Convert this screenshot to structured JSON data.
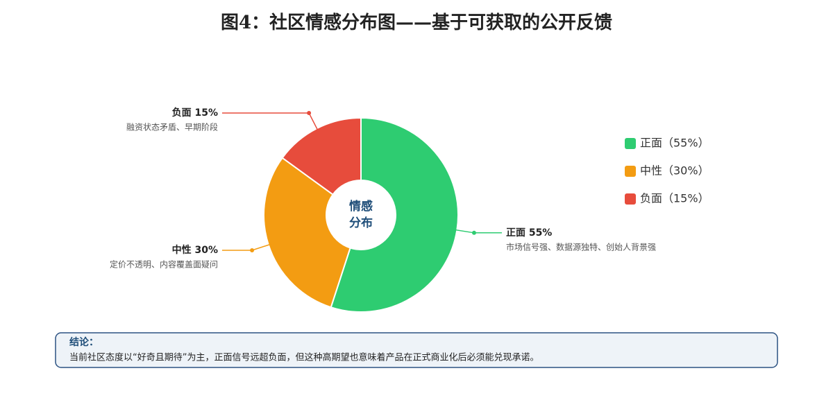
{
  "chart_data": {
    "type": "donut",
    "title": "图4：社区情感分布图——基于可获取的公开反馈",
    "center_label": [
      "情感",
      "分布"
    ],
    "categories": [
      "正面",
      "中性",
      "负面"
    ],
    "values": [
      55,
      30,
      15
    ],
    "value_labels": [
      "正面 55%",
      "中性 30%",
      "负面 15%"
    ],
    "descriptions": [
      "市场信号强、数据源独特、创始人背景强",
      "定价不透明、内容覆盖面疑问",
      "融资状态矛盾、早期阶段"
    ],
    "legend_labels": [
      "正面（55%）",
      "中性（30%）",
      "负面（15%）"
    ],
    "colors": [
      "#2ecc71",
      "#f39c12",
      "#e74c3c"
    ],
    "legend": "right"
  },
  "conclusion": {
    "title": "结论：",
    "text": "当前社区态度以“好奇且期待”为主，正面信号远超负面，但这种高期望也意味着产品在正式商业化后必须能兑现承诺。"
  }
}
